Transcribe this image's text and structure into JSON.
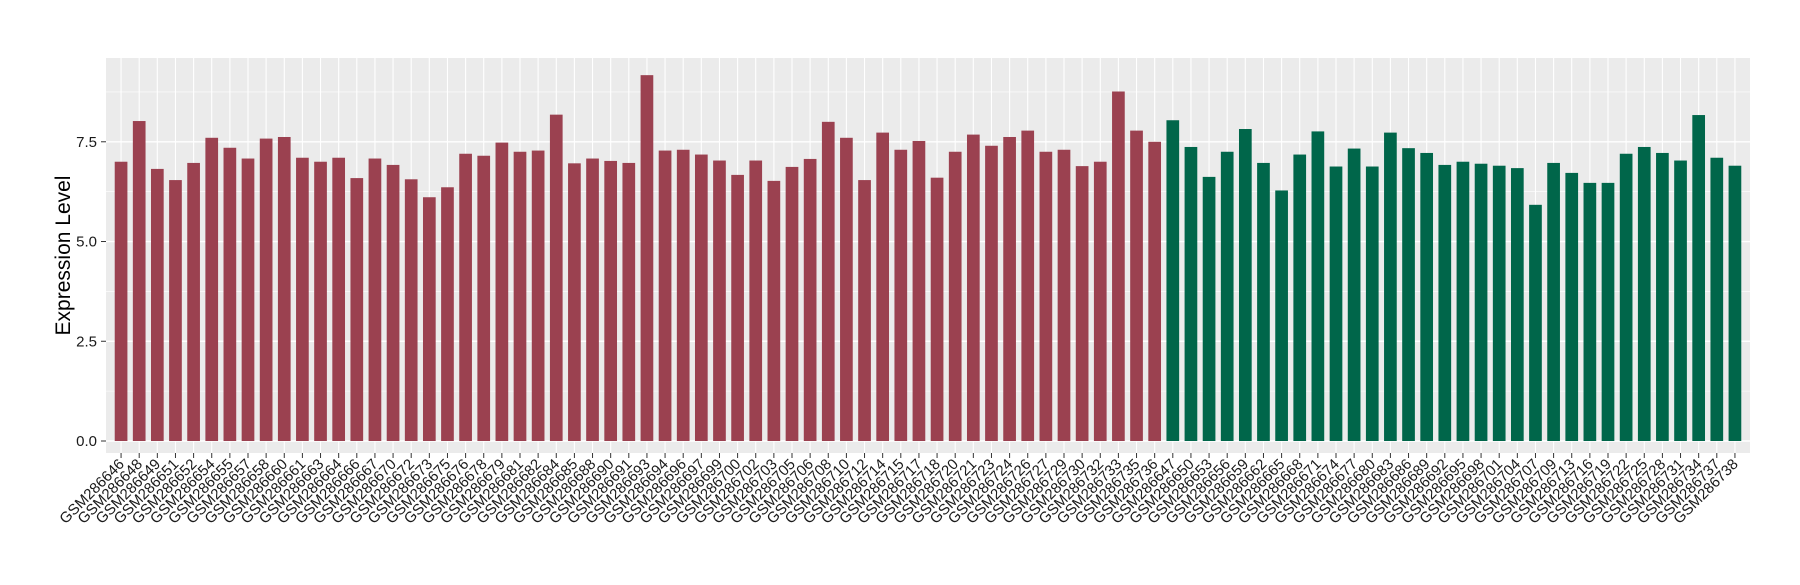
{
  "chart_data": {
    "type": "bar",
    "title": "",
    "xlabel": "",
    "ylabel": "Expression Level",
    "ylim": [
      0,
      9.6
    ],
    "yticks": [
      0.0,
      2.5,
      5.0,
      7.5
    ],
    "ytick_labels": [
      "0.0",
      "2.5",
      "5.0",
      "7.5"
    ],
    "grid": true,
    "colors": {
      "group1": "#9b4150",
      "group2": "#00664a",
      "panel_bg": "#ebebeb",
      "grid_major": "#ffffff",
      "page_bg": "#ffffff"
    },
    "categories": [
      "GSM286646",
      "GSM286648",
      "GSM286649",
      "GSM286651",
      "GSM286652",
      "GSM286654",
      "GSM286655",
      "GSM286657",
      "GSM286658",
      "GSM286660",
      "GSM286661",
      "GSM286663",
      "GSM286664",
      "GSM286666",
      "GSM286667",
      "GSM286670",
      "GSM286672",
      "GSM286673",
      "GSM286675",
      "GSM286676",
      "GSM286678",
      "GSM286679",
      "GSM286681",
      "GSM286682",
      "GSM286684",
      "GSM286685",
      "GSM286688",
      "GSM286690",
      "GSM286691",
      "GSM286693",
      "GSM286694",
      "GSM286696",
      "GSM286697",
      "GSM286699",
      "GSM286700",
      "GSM286702",
      "GSM286703",
      "GSM286705",
      "GSM286706",
      "GSM286708",
      "GSM286710",
      "GSM286712",
      "GSM286714",
      "GSM286715",
      "GSM286717",
      "GSM286718",
      "GSM286720",
      "GSM286721",
      "GSM286723",
      "GSM286724",
      "GSM286726",
      "GSM286727",
      "GSM286729",
      "GSM286730",
      "GSM286732",
      "GSM286733",
      "GSM286735",
      "GSM286736",
      "GSM286647",
      "GSM286650",
      "GSM286653",
      "GSM286656",
      "GSM286659",
      "GSM286662",
      "GSM286665",
      "GSM286668",
      "GSM286671",
      "GSM286674",
      "GSM286677",
      "GSM286680",
      "GSM286683",
      "GSM286686",
      "GSM286689",
      "GSM286692",
      "GSM286695",
      "GSM286698",
      "GSM286701",
      "GSM286704",
      "GSM286707",
      "GSM286709",
      "GSM286713",
      "GSM286716",
      "GSM286719",
      "GSM286722",
      "GSM286725",
      "GSM286728",
      "GSM286731",
      "GSM286734",
      "GSM286737",
      "GSM286738"
    ],
    "values": [
      7.0,
      8.02,
      6.82,
      6.54,
      6.97,
      7.6,
      7.35,
      7.08,
      7.58,
      7.62,
      7.1,
      7.0,
      7.1,
      6.59,
      7.08,
      6.92,
      6.56,
      6.11,
      6.36,
      7.2,
      7.15,
      7.48,
      7.25,
      7.28,
      8.18,
      6.96,
      7.08,
      7.02,
      6.97,
      9.17,
      7.28,
      7.3,
      7.18,
      7.03,
      6.67,
      7.03,
      6.52,
      6.87,
      7.07,
      8.0,
      7.6,
      6.54,
      7.73,
      7.3,
      7.52,
      6.6,
      7.25,
      7.68,
      7.4,
      7.62,
      7.78,
      7.25,
      7.3,
      6.89,
      7.0,
      8.76,
      7.78,
      7.5,
      8.04,
      7.37,
      6.62,
      7.25,
      7.82,
      6.97,
      6.28,
      7.18,
      7.76,
      6.88,
      7.33,
      6.88,
      7.73,
      7.34,
      7.22,
      6.92,
      7.0,
      6.95,
      6.9,
      6.84,
      5.92,
      6.97,
      6.72,
      6.47,
      6.47,
      7.2,
      7.37,
      7.22,
      7.03,
      8.17,
      7.1,
      6.9
    ],
    "group_sizes": [
      58,
      32
    ]
  }
}
